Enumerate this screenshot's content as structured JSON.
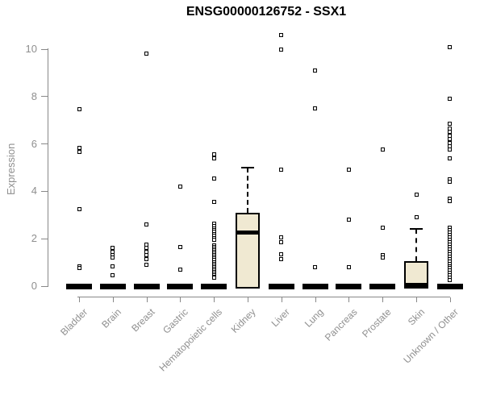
{
  "title": "ENSG00000126752 - SSX1",
  "chart_data": {
    "type": "boxplot",
    "title": "ENSG00000126752 - SSX1",
    "ylabel": "Expression",
    "xlabel": "",
    "ylim": [
      0,
      10.8
    ],
    "yticks": [
      0,
      2,
      4,
      6,
      8,
      10
    ],
    "grid": false,
    "legend": false,
    "colors": {
      "box_fill": "#f0e9d2",
      "box_border": "#000000",
      "median": "#000000",
      "outlier": "#000000",
      "axis_text": "#8f8f8f",
      "axis_line": "#888888",
      "title_text": "#000000"
    },
    "categories": [
      {
        "label": "Bladder",
        "q1": 0,
        "median": 0,
        "q3": 0,
        "whisker_low": 0,
        "whisker_high": 0,
        "outliers": [
          7.45,
          5.85,
          5.65,
          3.25,
          0.85,
          0.75
        ]
      },
      {
        "label": "Brain",
        "q1": 0,
        "median": 0,
        "q3": 0,
        "whisker_low": 0,
        "whisker_high": 0,
        "outliers": [
          1.6,
          1.45,
          1.3,
          1.2,
          0.85,
          0.45
        ]
      },
      {
        "label": "Breast",
        "q1": 0,
        "median": 0,
        "q3": 0,
        "whisker_low": 0,
        "whisker_high": 0,
        "outliers": [
          9.8,
          2.6,
          1.75,
          1.6,
          1.45,
          1.3,
          1.15,
          0.9
        ]
      },
      {
        "label": "Gastric",
        "q1": 0,
        "median": 0,
        "q3": 0,
        "whisker_low": 0,
        "whisker_high": 0,
        "outliers": [
          4.2,
          1.65,
          0.7
        ]
      },
      {
        "label": "Hematopoietic cells",
        "q1": 0,
        "median": 0,
        "q3": 0,
        "whisker_low": 0,
        "whisker_high": 0,
        "outliers": [
          5.55,
          5.4,
          4.55,
          3.55,
          2.65,
          2.52,
          2.44,
          2.36,
          2.28,
          2.2,
          2.12,
          2.04,
          1.96,
          1.72,
          1.65,
          1.58,
          1.51,
          1.44,
          1.37,
          1.3,
          1.23,
          1.16,
          1.09,
          1.02,
          0.95,
          0.88,
          0.81,
          0.74,
          0.67,
          0.6,
          0.53,
          0.46,
          0.39,
          0.35
        ]
      },
      {
        "label": "Kidney",
        "q1": 0,
        "median": 2.25,
        "q3": 3.1,
        "whisker_low": 0,
        "whisker_high": 5.0,
        "outliers": []
      },
      {
        "label": "Liver",
        "q1": 0,
        "median": 0,
        "q3": 0,
        "whisker_low": 0,
        "whisker_high": 0,
        "outliers": [
          10.6,
          10.0,
          4.9,
          2.05,
          1.85,
          1.35,
          1.15
        ]
      },
      {
        "label": "Lung",
        "q1": 0,
        "median": 0,
        "q3": 0,
        "whisker_low": 0,
        "whisker_high": 0,
        "outliers": [
          9.1,
          7.5,
          0.8
        ]
      },
      {
        "label": "Pancreas",
        "q1": 0,
        "median": 0,
        "q3": 0,
        "whisker_low": 0,
        "whisker_high": 0,
        "outliers": [
          4.9,
          2.8,
          0.8
        ]
      },
      {
        "label": "Prostate",
        "q1": 0,
        "median": 0,
        "q3": 0,
        "whisker_low": 0,
        "whisker_high": 0,
        "outliers": [
          5.75,
          2.45,
          1.3,
          1.2
        ]
      },
      {
        "label": "Skin",
        "q1": 0,
        "median": 0.05,
        "q3": 1.05,
        "whisker_low": 0,
        "whisker_high": 2.4,
        "outliers": [
          3.85,
          2.9
        ]
      },
      {
        "label": "Unknown / Other",
        "q1": 0,
        "median": 0,
        "q3": 0,
        "whisker_low": 0,
        "whisker_high": 0,
        "outliers": [
          10.1,
          7.9,
          6.85,
          6.65,
          6.5,
          6.35,
          6.2,
          6.05,
          5.9,
          5.75,
          5.4,
          4.5,
          4.4,
          3.7,
          3.6,
          2.45,
          2.35,
          2.25,
          2.15,
          2.05,
          1.95,
          1.85,
          1.75,
          1.65,
          1.55,
          1.45,
          1.35,
          1.25,
          1.15,
          1.05,
          0.95,
          0.85,
          0.75,
          0.65,
          0.55,
          0.45,
          0.35,
          0.25
        ]
      }
    ]
  }
}
